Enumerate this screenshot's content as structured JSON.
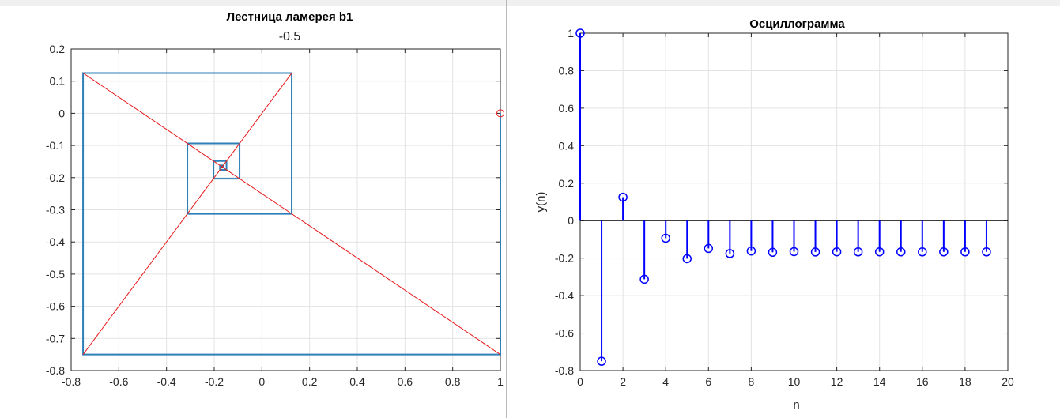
{
  "windows": [
    {
      "id": "left"
    },
    {
      "id": "right"
    }
  ],
  "chart_data": [
    {
      "type": "line",
      "title": "Лестница ламерея b1",
      "subtitle": "-0.5",
      "xlabel": "",
      "ylabel": "",
      "xlim": [
        -0.8,
        1
      ],
      "ylim": [
        -0.8,
        0.2
      ],
      "xticks": [
        -0.8,
        -0.6,
        -0.4,
        -0.2,
        0,
        0.2,
        0.4,
        0.6,
        0.8,
        1
      ],
      "xtick_labels": [
        "-0.8",
        "-0.6",
        "-0.4",
        "-0.2",
        "0",
        "0.2",
        "0.4",
        "0.6",
        "0.8",
        "1"
      ],
      "yticks": [
        0.2,
        0.1,
        0,
        -0.1,
        -0.2,
        -0.3,
        -0.4,
        -0.5,
        -0.6,
        -0.7,
        -0.8
      ],
      "ytick_labels": [
        "0.2",
        "0.1",
        "0",
        "-0.1",
        "-0.2",
        "-0.3",
        "-0.4",
        "-0.5",
        "-0.6",
        "-0.7",
        "-0.8"
      ],
      "grid": true,
      "colors": {
        "staircase": "#2e7fb8",
        "lines": "#e8191b",
        "start_marker": "#e8191b"
      },
      "series": [
        {
          "name": "",
          "style": "staircase",
          "points": [
            [
              1,
              0
            ],
            [
              1,
              -0.75
            ],
            [
              -0.75,
              -0.75
            ],
            [
              -0.75,
              0.125
            ],
            [
              0.125,
              0.125
            ],
            [
              0.125,
              -0.3125
            ],
            [
              -0.3125,
              -0.3125
            ],
            [
              -0.3125,
              -0.09375
            ],
            [
              -0.09375,
              -0.09375
            ],
            [
              -0.09375,
              -0.203125
            ],
            [
              -0.203125,
              -0.203125
            ],
            [
              -0.203125,
              -0.1484375
            ],
            [
              -0.1484375,
              -0.1484375
            ],
            [
              -0.1484375,
              -0.17578
            ],
            [
              -0.17578,
              -0.17578
            ],
            [
              -0.17578,
              -0.16211
            ],
            [
              -0.16211,
              -0.16211
            ],
            [
              -0.16211,
              -0.16895
            ],
            [
              -0.16895,
              -0.16895
            ],
            [
              -0.16895,
              -0.16553
            ],
            [
              -0.16553,
              -0.16553
            ]
          ]
        },
        {
          "name": "",
          "style": "line",
          "points": [
            [
              -0.75,
              -0.75
            ],
            [
              0.125,
              0.125
            ]
          ]
        },
        {
          "name": "",
          "style": "line",
          "points": [
            [
              -0.75,
              0.125
            ],
            [
              1,
              -0.75
            ]
          ]
        }
      ],
      "start_point": [
        1,
        0
      ]
    },
    {
      "type": "stem",
      "title": "Осциллограмма",
      "xlabel": "n",
      "ylabel": "y(n)",
      "xlim": [
        0,
        20
      ],
      "ylim": [
        -0.8,
        1
      ],
      "xticks": [
        0,
        2,
        4,
        6,
        8,
        10,
        12,
        14,
        16,
        18,
        20
      ],
      "xtick_labels": [
        "0",
        "2",
        "4",
        "6",
        "8",
        "10",
        "12",
        "14",
        "16",
        "18",
        "20"
      ],
      "yticks": [
        1,
        0.8,
        0.6,
        0.4,
        0.2,
        0,
        -0.2,
        -0.4,
        -0.6,
        -0.8
      ],
      "ytick_labels": [
        "1",
        "0.8",
        "0.6",
        "0.4",
        "0.2",
        "0",
        "-0.2",
        "-0.4",
        "-0.6",
        "-0.8"
      ],
      "grid": true,
      "colors": {
        "stem": "#0000ff"
      },
      "x": [
        0,
        1,
        2,
        3,
        4,
        5,
        6,
        7,
        8,
        9,
        10,
        11,
        12,
        13,
        14,
        15,
        16,
        17,
        18,
        19
      ],
      "y": [
        1,
        -0.75,
        0.125,
        -0.3125,
        -0.09375,
        -0.203125,
        -0.1484,
        -0.1758,
        -0.1621,
        -0.1689,
        -0.1655,
        -0.1672,
        -0.1664,
        -0.1668,
        -0.1666,
        -0.1667,
        -0.1667,
        -0.1667,
        -0.1667,
        -0.1667
      ]
    }
  ]
}
